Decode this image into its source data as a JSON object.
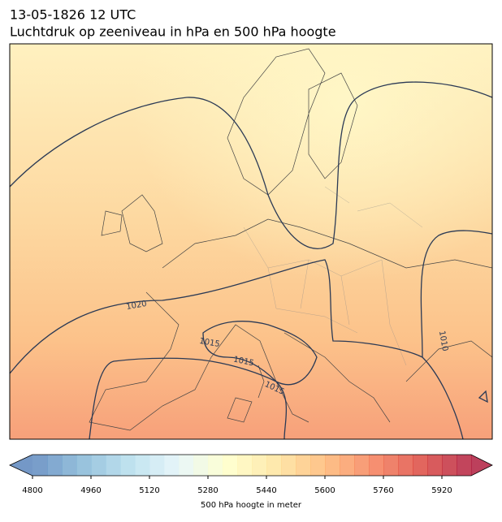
{
  "title": {
    "line1": "13-05-1826 12 UTC",
    "line2": "Luchtdruk op zeeniveau in hPa en 500 hPa hoogte"
  },
  "contour_labels": [
    "1020",
    "1015",
    "1015",
    "1015",
    "1010"
  ],
  "colorbar": {
    "lim": [
      4800,
      6000
    ],
    "ticks": [
      4800,
      4960,
      5120,
      5280,
      5440,
      5600,
      5760,
      5920
    ],
    "label": "500 hPa hoogte in meter"
  }
}
